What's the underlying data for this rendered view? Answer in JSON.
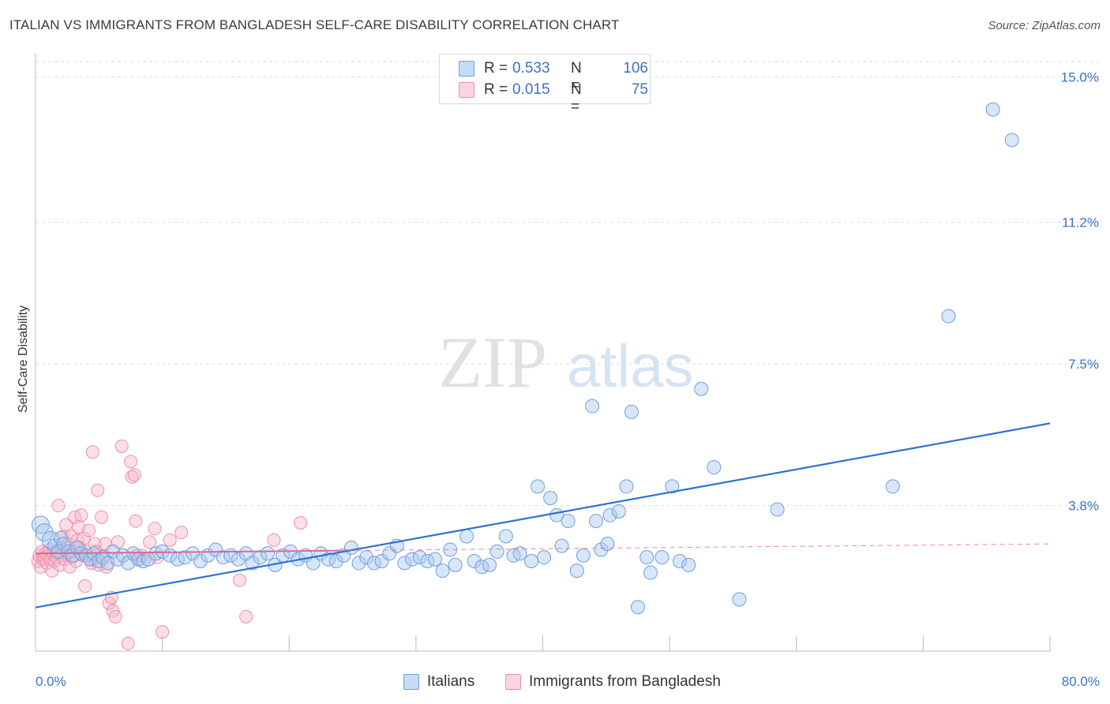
{
  "header": {
    "title": "ITALIAN VS IMMIGRANTS FROM BANGLADESH SELF-CARE DISABILITY CORRELATION CHART",
    "source": "Source: ZipAtlas.com"
  },
  "watermark": {
    "zip": "ZIP",
    "atlas": "atlas"
  },
  "legend": {
    "rows": [
      {
        "r_label": "R = ",
        "r_value": "0.533",
        "n_label": "N =",
        "n_value": "106",
        "color": "#a9c8f0"
      },
      {
        "r_label": "R = ",
        "r_value": "0.015",
        "n_label": "N =",
        "n_value": "75",
        "color": "#f7b9ca"
      }
    ]
  },
  "bottom_legend": {
    "series1": "Italians",
    "series2": "Immigrants from Bangladesh"
  },
  "colors": {
    "italians_fill": "#a9c8f0",
    "italians_stroke": "#6d9fe0",
    "italians_line": "#2f72d4",
    "bangladesh_fill": "#f7b9ca",
    "bangladesh_stroke": "#ee8fab",
    "bangladesh_line": "#e0688c",
    "tick_text": "#3b73c8",
    "grid": "#dedede"
  },
  "chart_data": {
    "type": "scatter",
    "title": "ITALIAN VS IMMIGRANTS FROM BANGLADESH SELF-CARE DISABILITY CORRELATION CHART",
    "xlabel": "",
    "ylabel": "Self-Care Disability",
    "xlim": [
      0,
      80
    ],
    "ylim": [
      0,
      15.4
    ],
    "x_tick_labels": [
      "0.0%",
      "80.0%"
    ],
    "y_ticks": [
      3.8,
      7.5,
      11.2,
      15.0
    ],
    "y_tick_labels": [
      "3.8%",
      "7.5%",
      "11.2%",
      "15.0%"
    ],
    "grid": true,
    "legend_position": "top-center",
    "series": [
      {
        "name": "Italians",
        "trend": {
          "x": [
            0,
            80
          ],
          "y": [
            1.14,
            5.95
          ]
        },
        "points": [
          [
            0.4,
            3.3
          ],
          [
            0.7,
            3.1
          ],
          [
            1.2,
            2.9
          ],
          [
            1.5,
            2.75
          ],
          [
            1.8,
            2.6
          ],
          [
            2.0,
            2.95
          ],
          [
            2.2,
            2.8
          ],
          [
            2.6,
            2.6
          ],
          [
            2.9,
            2.5
          ],
          [
            3.3,
            2.7
          ],
          [
            3.6,
            2.55
          ],
          [
            4.0,
            2.5
          ],
          [
            4.3,
            2.4
          ],
          [
            4.6,
            2.55
          ],
          [
            5.0,
            2.35
          ],
          [
            5.3,
            2.45
          ],
          [
            5.7,
            2.3
          ],
          [
            6.1,
            2.6
          ],
          [
            6.5,
            2.4
          ],
          [
            6.9,
            2.5
          ],
          [
            7.3,
            2.3
          ],
          [
            7.7,
            2.55
          ],
          [
            8.1,
            2.4
          ],
          [
            8.5,
            2.35
          ],
          [
            8.9,
            2.4
          ],
          [
            9.5,
            2.55
          ],
          [
            10.0,
            2.6
          ],
          [
            10.6,
            2.5
          ],
          [
            11.2,
            2.4
          ],
          [
            11.8,
            2.45
          ],
          [
            12.4,
            2.55
          ],
          [
            13.0,
            2.35
          ],
          [
            13.6,
            2.5
          ],
          [
            14.2,
            2.65
          ],
          [
            14.8,
            2.45
          ],
          [
            15.4,
            2.5
          ],
          [
            16.0,
            2.4
          ],
          [
            16.6,
            2.55
          ],
          [
            17.1,
            2.3
          ],
          [
            17.7,
            2.45
          ],
          [
            18.3,
            2.55
          ],
          [
            18.9,
            2.25
          ],
          [
            19.5,
            2.5
          ],
          [
            20.1,
            2.6
          ],
          [
            20.7,
            2.4
          ],
          [
            21.3,
            2.5
          ],
          [
            21.9,
            2.3
          ],
          [
            22.5,
            2.55
          ],
          [
            23.1,
            2.4
          ],
          [
            23.7,
            2.35
          ],
          [
            24.3,
            2.5
          ],
          [
            24.9,
            2.7
          ],
          [
            25.5,
            2.3
          ],
          [
            26.1,
            2.45
          ],
          [
            26.7,
            2.3
          ],
          [
            27.3,
            2.35
          ],
          [
            27.9,
            2.55
          ],
          [
            28.5,
            2.75
          ],
          [
            29.1,
            2.3
          ],
          [
            29.7,
            2.4
          ],
          [
            30.3,
            2.45
          ],
          [
            30.9,
            2.35
          ],
          [
            31.5,
            2.4
          ],
          [
            32.1,
            2.1
          ],
          [
            32.7,
            2.65
          ],
          [
            33.1,
            2.25
          ],
          [
            34.0,
            3.0
          ],
          [
            34.6,
            2.35
          ],
          [
            35.2,
            2.2
          ],
          [
            35.8,
            2.25
          ],
          [
            36.4,
            2.6
          ],
          [
            37.1,
            3.0
          ],
          [
            37.7,
            2.5
          ],
          [
            38.2,
            2.55
          ],
          [
            39.1,
            2.35
          ],
          [
            39.6,
            4.3
          ],
          [
            40.1,
            2.45
          ],
          [
            40.6,
            4.0
          ],
          [
            41.1,
            3.55
          ],
          [
            41.5,
            2.75
          ],
          [
            42.0,
            3.4
          ],
          [
            42.7,
            2.1
          ],
          [
            43.2,
            2.5
          ],
          [
            43.9,
            6.4
          ],
          [
            44.2,
            3.4
          ],
          [
            44.6,
            2.65
          ],
          [
            45.1,
            2.8
          ],
          [
            45.3,
            3.55
          ],
          [
            46.0,
            3.65
          ],
          [
            46.6,
            4.3
          ],
          [
            47.0,
            6.25
          ],
          [
            47.5,
            1.15
          ],
          [
            48.2,
            2.45
          ],
          [
            48.5,
            2.05
          ],
          [
            49.4,
            2.45
          ],
          [
            50.2,
            4.3
          ],
          [
            50.8,
            2.35
          ],
          [
            51.5,
            2.25
          ],
          [
            52.5,
            6.85
          ],
          [
            53.5,
            4.8
          ],
          [
            55.5,
            1.35
          ],
          [
            58.5,
            3.7
          ],
          [
            67.6,
            4.3
          ],
          [
            72.0,
            8.75
          ],
          [
            75.5,
            14.15
          ],
          [
            77.0,
            13.35
          ]
        ]
      },
      {
        "name": "Immigrants from Bangladesh",
        "trend": {
          "x": [
            0,
            80
          ],
          "y": [
            2.55,
            2.8
          ]
        },
        "points": [
          [
            0.2,
            2.35
          ],
          [
            0.3,
            2.5
          ],
          [
            0.4,
            2.2
          ],
          [
            0.5,
            2.6
          ],
          [
            0.6,
            2.4
          ],
          [
            0.7,
            2.45
          ],
          [
            0.8,
            2.55
          ],
          [
            0.9,
            2.3
          ],
          [
            1.0,
            2.5
          ],
          [
            1.1,
            2.65
          ],
          [
            1.2,
            2.4
          ],
          [
            1.3,
            2.1
          ],
          [
            1.4,
            2.55
          ],
          [
            1.5,
            2.35
          ],
          [
            1.6,
            2.6
          ],
          [
            1.7,
            2.45
          ],
          [
            1.8,
            3.8
          ],
          [
            1.9,
            2.25
          ],
          [
            2.0,
            2.7
          ],
          [
            2.1,
            2.5
          ],
          [
            2.2,
            3.0
          ],
          [
            2.3,
            2.4
          ],
          [
            2.4,
            3.3
          ],
          [
            2.5,
            2.55
          ],
          [
            2.6,
            2.8
          ],
          [
            2.7,
            2.2
          ],
          [
            2.8,
            3.0
          ],
          [
            2.9,
            2.45
          ],
          [
            3.0,
            2.6
          ],
          [
            3.1,
            3.5
          ],
          [
            3.2,
            2.35
          ],
          [
            3.3,
            2.9
          ],
          [
            3.4,
            3.25
          ],
          [
            3.5,
            2.7
          ],
          [
            3.6,
            3.55
          ],
          [
            3.7,
            2.5
          ],
          [
            3.8,
            2.95
          ],
          [
            3.9,
            1.7
          ],
          [
            4.0,
            2.6
          ],
          [
            4.2,
            3.15
          ],
          [
            4.4,
            2.3
          ],
          [
            4.5,
            5.2
          ],
          [
            4.6,
            2.4
          ],
          [
            4.7,
            2.8
          ],
          [
            4.8,
            2.6
          ],
          [
            4.9,
            4.2
          ],
          [
            5.0,
            2.25
          ],
          [
            5.2,
            3.5
          ],
          [
            5.4,
            2.5
          ],
          [
            5.5,
            2.8
          ],
          [
            5.6,
            2.2
          ],
          [
            5.8,
            1.25
          ],
          [
            6.0,
            1.4
          ],
          [
            6.1,
            1.05
          ],
          [
            6.3,
            0.9
          ],
          [
            6.5,
            2.85
          ],
          [
            6.8,
            5.35
          ],
          [
            7.3,
            0.2
          ],
          [
            7.5,
            4.95
          ],
          [
            7.6,
            4.55
          ],
          [
            7.8,
            4.6
          ],
          [
            7.9,
            3.4
          ],
          [
            8.0,
            2.5
          ],
          [
            8.2,
            2.4
          ],
          [
            8.4,
            2.5
          ],
          [
            9.0,
            2.85
          ],
          [
            9.4,
            3.2
          ],
          [
            9.6,
            2.45
          ],
          [
            10.0,
            0.5
          ],
          [
            10.6,
            2.9
          ],
          [
            11.5,
            3.1
          ],
          [
            16.1,
            1.85
          ],
          [
            16.6,
            0.9
          ],
          [
            18.8,
            2.9
          ],
          [
            20.9,
            3.35
          ]
        ]
      }
    ]
  }
}
